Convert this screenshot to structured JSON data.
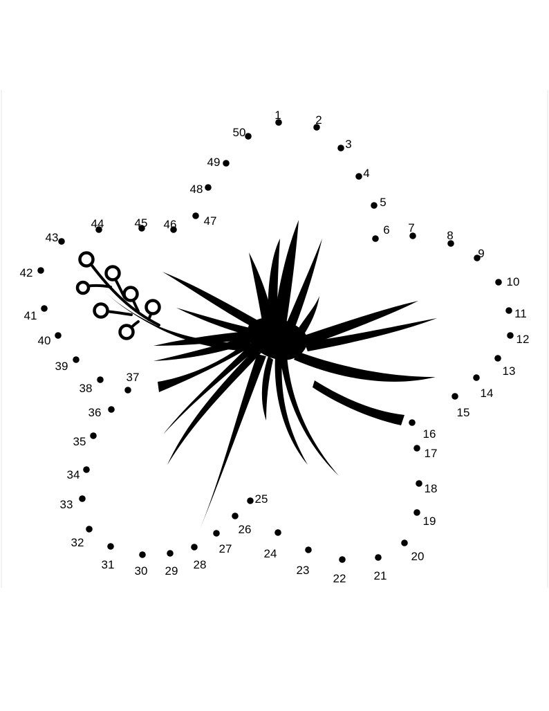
{
  "dots": [
    {
      "label": "1"
    },
    {
      "label": "2"
    },
    {
      "label": "3"
    },
    {
      "label": "4"
    },
    {
      "label": "5"
    },
    {
      "label": "6"
    },
    {
      "label": "7"
    },
    {
      "label": "8"
    },
    {
      "label": "9"
    },
    {
      "label": "10"
    },
    {
      "label": "11"
    },
    {
      "label": "12"
    },
    {
      "label": "13"
    },
    {
      "label": "14"
    },
    {
      "label": "15"
    },
    {
      "label": "16"
    },
    {
      "label": "17"
    },
    {
      "label": "18"
    },
    {
      "label": "19"
    },
    {
      "label": "20"
    },
    {
      "label": "21"
    },
    {
      "label": "22"
    },
    {
      "label": "23"
    },
    {
      "label": "24"
    },
    {
      "label": "25"
    },
    {
      "label": "26"
    },
    {
      "label": "27"
    },
    {
      "label": "28"
    },
    {
      "label": "29"
    },
    {
      "label": "30"
    },
    {
      "label": "31"
    },
    {
      "label": "32"
    },
    {
      "label": "33"
    },
    {
      "label": "34"
    },
    {
      "label": "35"
    },
    {
      "label": "36"
    },
    {
      "label": "37"
    },
    {
      "label": "38"
    },
    {
      "label": "39"
    },
    {
      "label": "40"
    },
    {
      "label": "41"
    },
    {
      "label": "42"
    },
    {
      "label": "43"
    },
    {
      "label": "44"
    },
    {
      "label": "45"
    },
    {
      "label": "46"
    },
    {
      "label": "47"
    },
    {
      "label": "48"
    },
    {
      "label": "49"
    },
    {
      "label": "50"
    }
  ],
  "colors": {
    "ink": "#000000",
    "paper": "#ffffff"
  },
  "drawing": "hibiscus-stamen"
}
